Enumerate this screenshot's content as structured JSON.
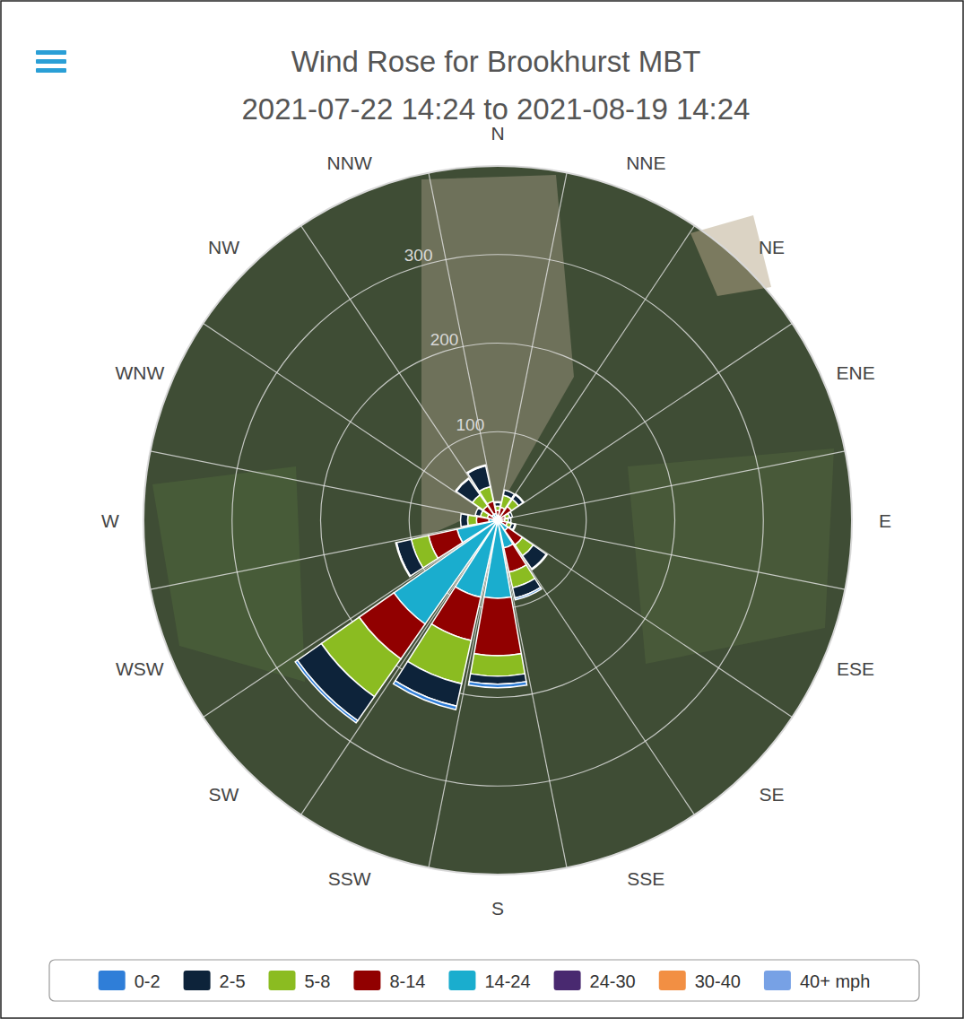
{
  "chart_data": {
    "type": "windrose",
    "title": "Wind Rose for Brookhurst MBT",
    "subtitle": "2021-07-22 14:24 to 2021-08-19 14:24",
    "categories": [
      "N",
      "NNE",
      "NE",
      "ENE",
      "E",
      "ESE",
      "SE",
      "SSE",
      "S",
      "SSW",
      "SW",
      "WSW",
      "W",
      "WNW",
      "NW",
      "NNW"
    ],
    "series": [
      {
        "name": "0-2",
        "color": "#2f7ed8",
        "values": [
          1,
          0,
          1,
          0,
          0,
          1,
          1,
          2,
          4,
          4,
          3,
          1,
          0,
          0,
          1,
          1
        ]
      },
      {
        "name": "2-5",
        "color": "#0d233a",
        "values": [
          4,
          6,
          6,
          3,
          3,
          4,
          18,
          12,
          9,
          26,
          33,
          17,
          8,
          6,
          22,
          24
        ]
      },
      {
        "name": "5-8",
        "color": "#8bbc21",
        "values": [
          5,
          14,
          10,
          5,
          4,
          5,
          15,
          18,
          23,
          50,
          52,
          20,
          10,
          8,
          15,
          17
        ]
      },
      {
        "name": "8-14",
        "color": "#910000",
        "values": [
          6,
          10,
          15,
          5,
          5,
          6,
          20,
          28,
          65,
          50,
          48,
          33,
          14,
          7,
          12,
          14
        ]
      },
      {
        "name": "14-24",
        "color": "#1aadce",
        "values": [
          4,
          5,
          4,
          4,
          3,
          5,
          14,
          30,
          85,
          85,
          140,
          45,
          10,
          5,
          8,
          8
        ]
      },
      {
        "name": "24-30",
        "color": "#492970",
        "values": [
          1,
          0,
          0,
          0,
          0,
          0,
          0,
          2,
          3,
          4,
          3,
          2,
          0,
          0,
          0,
          0
        ]
      },
      {
        "name": "30-40",
        "color": "#f28f43",
        "values": [
          0,
          0,
          0,
          0,
          0,
          0,
          0,
          0,
          0,
          0,
          0,
          0,
          0,
          0,
          0,
          0
        ]
      },
      {
        "name": "40+ mph",
        "color": "#77a1e5",
        "values": [
          0,
          0,
          0,
          0,
          0,
          0,
          0,
          0,
          0,
          0,
          0,
          0,
          0,
          0,
          0,
          0
        ]
      }
    ],
    "ylim": [
      0,
      400
    ],
    "yticks": [
      100,
      200,
      300
    ],
    "grid": true,
    "stacked": true,
    "legend": "bottom"
  }
}
